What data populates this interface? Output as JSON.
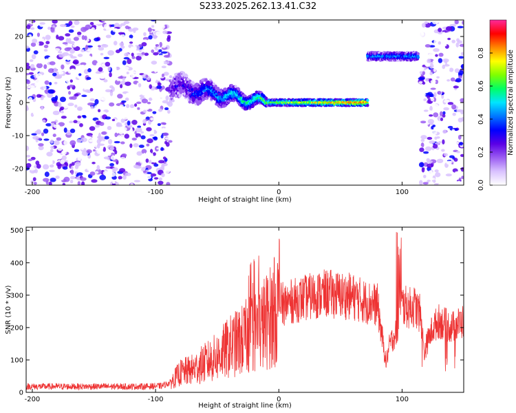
{
  "title": "S233.2025.262.13.41.C32",
  "colors": {
    "snr_line": "#ee3333",
    "colormap": [
      "#ffffff",
      "#d9c2ff",
      "#9b5cf2",
      "#5a00e6",
      "#0000ff",
      "#0077ff",
      "#00e5ff",
      "#00ff66",
      "#7fff00",
      "#ffff00",
      "#ff8800",
      "#ff0000",
      "#ff2a9a"
    ]
  },
  "chart_data": [
    {
      "type": "heatmap",
      "title": "S233.2025.262.13.41.C32",
      "xlabel": "Height of straight line (km)",
      "ylabel": "Frequency (Hz)",
      "xlim": [
        -205,
        150
      ],
      "ylim": [
        -25,
        25
      ],
      "x_ticks": [
        "-200",
        "-100",
        "0",
        "100"
      ],
      "x_tick_values": [
        -200,
        -100,
        0,
        100
      ],
      "y_ticks": [
        "20",
        "10",
        "0",
        "-10",
        "-20"
      ],
      "y_tick_values": [
        20,
        10,
        0,
        -10,
        -20
      ],
      "noise_regions": [
        [
          -205,
          -88
        ],
        [
          115,
          150
        ]
      ],
      "features": [
        {
          "name": "descending trace",
          "x_range": [
            -88,
            -10
          ],
          "freq_start": 5,
          "freq_end": 0
        },
        {
          "name": "steady trace",
          "x_range": [
            -10,
            72
          ],
          "freq": 0
        },
        {
          "name": "upper band",
          "x_range": [
            72,
            113
          ],
          "freq": 14
        }
      ],
      "colorbar": {
        "label": "Normalized spectral amplitude",
        "range": [
          0,
          1
        ],
        "ticks": [
          "0.0",
          "0.2",
          "0.4",
          "0.6",
          "0.8"
        ],
        "tick_values": [
          0.0,
          0.2,
          0.4,
          0.6,
          0.8
        ]
      }
    },
    {
      "type": "line",
      "xlabel": "Height of straight line (km)",
      "ylabel": "SNR (10 * v/v)",
      "xlim": [
        -205,
        150
      ],
      "ylim": [
        0,
        510
      ],
      "x_ticks": [
        "-200",
        "-100",
        "0",
        "100"
      ],
      "x_tick_values": [
        -200,
        -100,
        0,
        100
      ],
      "y_ticks": [
        "0",
        "100",
        "200",
        "300",
        "400",
        "500"
      ],
      "y_tick_values": [
        0,
        100,
        200,
        300,
        400,
        500
      ],
      "series": [
        {
          "x": [
            -205,
            -190,
            -170,
            -150,
            -130,
            -110,
            -95,
            -88,
            -80,
            -70,
            -60,
            -50,
            -40,
            -30,
            -20,
            -15,
            -10,
            -5,
            0,
            10,
            20,
            30,
            40,
            50,
            60,
            70,
            75,
            80,
            85,
            87,
            90,
            93,
            96,
            98,
            100,
            105,
            110,
            115,
            118,
            120,
            125,
            130,
            135,
            140,
            145,
            150
          ],
          "y": [
            18,
            18,
            18,
            18,
            18,
            18,
            20,
            30,
            60,
            70,
            90,
            110,
            140,
            160,
            190,
            200,
            220,
            240,
            270,
            280,
            290,
            300,
            305,
            300,
            295,
            280,
            275,
            270,
            140,
            90,
            150,
            170,
            190,
            290,
            270,
            260,
            265,
            240,
            120,
            150,
            200,
            220,
            210,
            200,
            210,
            220
          ]
        }
      ]
    }
  ]
}
